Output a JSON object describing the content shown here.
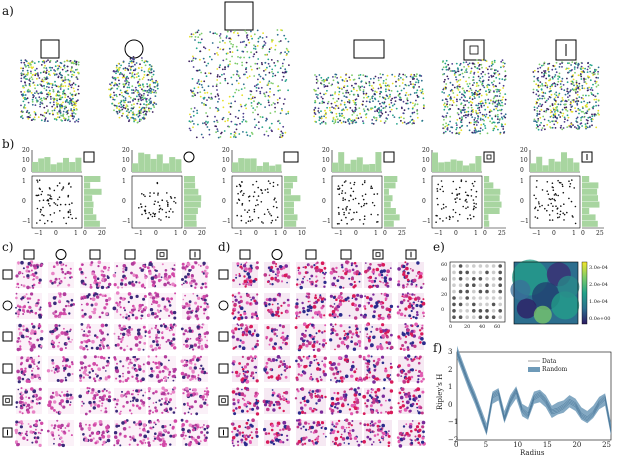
{
  "panels": {
    "a": "a)",
    "b": "b)",
    "c": "c)",
    "d": "d)",
    "e": "e)",
    "f": "f)"
  },
  "b_ticks": {
    "y_hist": [
      "20",
      "10",
      "0"
    ],
    "y_scatter": [
      "1",
      "0",
      "−1"
    ],
    "x_scatter": [
      "−1",
      "0",
      "1"
    ],
    "x_hist_set": [
      [
        "0",
        "20"
      ],
      [
        "0",
        "20"
      ],
      [
        "0",
        "10"
      ],
      [
        "0",
        "25"
      ],
      [
        "0",
        "25"
      ],
      [
        "0",
        "25"
      ]
    ]
  },
  "e_ticks": {
    "axis": [
      "0",
      "20",
      "40",
      "60"
    ],
    "colorbar": [
      "3.0e-04",
      "2.0e-04",
      "1.0e-04",
      "0.0e+00"
    ]
  },
  "f_chart": {
    "ylabel": "Ripley's H",
    "xlabel": "Radius",
    "legend": [
      "Data",
      "Random"
    ],
    "yticks": [
      "3",
      "2",
      "1",
      "0",
      "−1",
      "−2"
    ],
    "xticks": [
      "0",
      "5",
      "10",
      "15",
      "20",
      "25"
    ]
  },
  "colors": {
    "module_palette": [
      "#3b1f5c",
      "#2c6e8e",
      "#23a28a",
      "#7ccc6a",
      "#e7e029",
      "#4b3b8c"
    ],
    "hist_fill": "#a8d5a0",
    "ripley": "#6e9ab8"
  },
  "chart_data": {
    "type": "line",
    "x": [
      0,
      1,
      2,
      3,
      4,
      5,
      6,
      7,
      8,
      9,
      10,
      11,
      12,
      13,
      14,
      15,
      16,
      17,
      18,
      19,
      20,
      21,
      22,
      23,
      24,
      25,
      26
    ],
    "series": [
      {
        "name": "Data",
        "values": [
          3.0,
          2.1,
          1.2,
          0.4,
          -0.5,
          -1.5,
          0.5,
          0.7,
          -0.8,
          0.2,
          0.8,
          -0.3,
          -0.6,
          0.4,
          0.6,
          0.2,
          -0.4,
          -0.3,
          -0.1,
          0.2,
          0.0,
          -0.6,
          -0.8,
          -0.5,
          0.1,
          0.4,
          -1.5
        ]
      },
      {
        "name": "Random",
        "values": [
          3.0,
          2.1,
          1.2,
          0.4,
          -0.5,
          -1.4,
          0.4,
          0.6,
          -0.7,
          0.2,
          0.7,
          -0.3,
          -0.5,
          0.4,
          0.5,
          0.2,
          -0.4,
          -0.2,
          -0.1,
          0.2,
          0.0,
          -0.5,
          -0.7,
          -0.4,
          0.1,
          0.3,
          -1.4
        ]
      }
    ],
    "xlabel": "Radius",
    "ylabel": "Ripley's H",
    "ylim": [
      -2,
      3
    ],
    "xlim": [
      0,
      26
    ]
  }
}
